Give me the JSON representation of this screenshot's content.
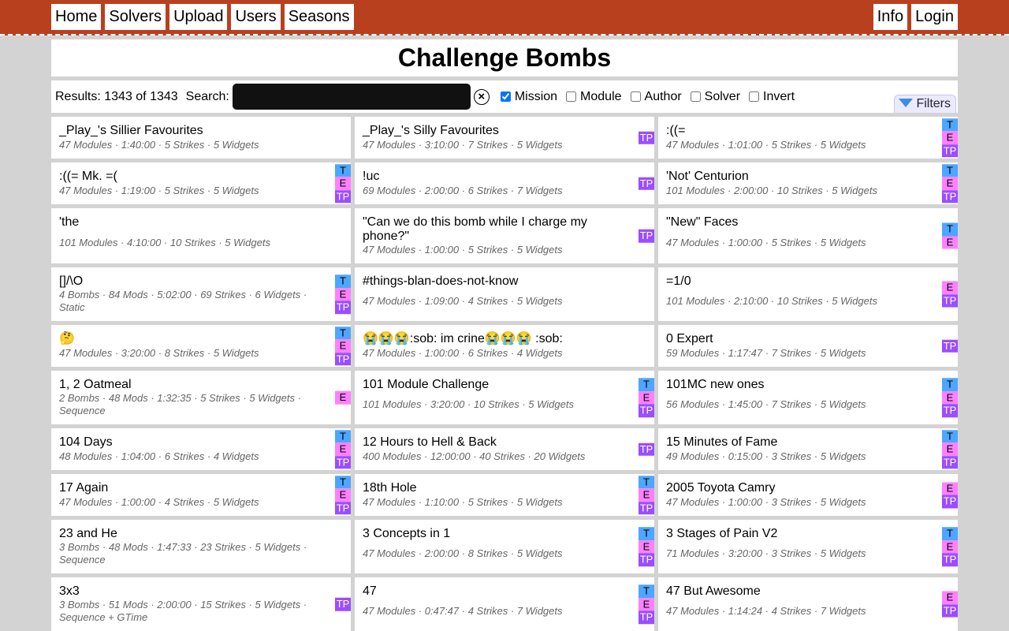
{
  "nav": {
    "left": [
      "Home",
      "Solvers",
      "Upload",
      "Users",
      "Seasons"
    ],
    "right": [
      "Info",
      "Login"
    ]
  },
  "page_title": "Challenge Bombs",
  "toolbar": {
    "results": "Results: 1343 of 1343",
    "search_label": "Search:",
    "search_value": "",
    "clear_icon": "circle-x-icon",
    "checkboxes": [
      {
        "label": "Mission",
        "checked": true
      },
      {
        "label": "Module",
        "checked": false
      },
      {
        "label": "Author",
        "checked": false
      },
      {
        "label": "Solver",
        "checked": false
      },
      {
        "label": "Invert",
        "checked": false
      }
    ],
    "filters_label": "Filters"
  },
  "badge_colors": {
    "T": "#4da6ff",
    "E": "#ff80ff",
    "TP": "#9b4dff"
  },
  "missions": [
    {
      "name": "_Play_'s Sillier Favourites",
      "details": "47 Modules · 1:40:00 · 5 Strikes · 5 Widgets",
      "badges": []
    },
    {
      "name": "_Play_'s Silly Favourites",
      "details": "47 Modules · 3:10:00 · 7 Strikes · 5 Widgets",
      "badges": [
        "TP"
      ]
    },
    {
      "name": ":((=",
      "details": "47 Modules · 1:01:00 · 5 Strikes · 5 Widgets",
      "badges": [
        "T",
        "E",
        "TP"
      ]
    },
    {
      "name": ":((= Mk. =(",
      "details": "47 Modules · 1:19:00 · 5 Strikes · 5 Widgets",
      "badges": [
        "T",
        "E",
        "TP"
      ]
    },
    {
      "name": "!uc",
      "details": "69 Modules · 2:00:00 · 6 Strikes · 7 Widgets",
      "badges": [
        "TP"
      ]
    },
    {
      "name": "'Not' Centurion",
      "details": "101 Modules · 2:00:00 · 10 Strikes · 5 Widgets",
      "badges": [
        "T",
        "E",
        "TP"
      ]
    },
    {
      "name": "'the",
      "details": "101 Modules · 4:10:00 · 10 Strikes · 5 Widgets",
      "badges": []
    },
    {
      "name": "\"Can we do this bomb while I charge my phone?\"",
      "details": "47 Modules · 1:00:00 · 5 Strikes · 5 Widgets",
      "badges": [
        "TP"
      ]
    },
    {
      "name": "\"New\" Faces",
      "details": "47 Modules · 1:00:00 · 5 Strikes · 5 Widgets",
      "badges": [
        "T",
        "E"
      ]
    },
    {
      "name": "[]/\\O",
      "details": "4 Bombs · 84 Mods · 5:02:00 · 69 Strikes · 6 Widgets · Static",
      "badges": [
        "T",
        "E",
        "TP"
      ]
    },
    {
      "name": "#things-blan-does-not-know",
      "details": "47 Modules · 1:09:00 · 4 Strikes · 5 Widgets",
      "badges": []
    },
    {
      "name": "=1/0",
      "details": "101 Modules · 2:10:00 · 10 Strikes · 5 Widgets",
      "badges": [
        "E",
        "TP"
      ]
    },
    {
      "name": "🤔",
      "details": "47 Modules · 3:20:00 · 8 Strikes · 5 Widgets",
      "badges": [
        "T",
        "E",
        "TP"
      ]
    },
    {
      "name": "😭😭😭:sob: im crine😭😭😭 :sob:",
      "details": "47 Modules · 1:00:00 · 6 Strikes · 4 Widgets",
      "badges": []
    },
    {
      "name": "0 Expert",
      "details": "59 Modules · 1:17:47 · 7 Strikes · 5 Widgets",
      "badges": [
        "TP"
      ]
    },
    {
      "name": "1, 2 Oatmeal",
      "details": "2 Bombs · 48 Mods · 1:32:35 · 5 Strikes · 5 Widgets · Sequence",
      "badges": [
        "E"
      ]
    },
    {
      "name": "101 Module Challenge",
      "details": "101 Modules · 3:20:00 · 10 Strikes · 5 Widgets",
      "badges": [
        "T",
        "E",
        "TP"
      ]
    },
    {
      "name": "101MC new ones",
      "details": "56 Modules · 1:45:00 · 7 Strikes · 5 Widgets",
      "badges": [
        "T",
        "E",
        "TP"
      ]
    },
    {
      "name": "104 Days",
      "details": "48 Modules · 1:04:00 · 6 Strikes · 4 Widgets",
      "badges": [
        "T",
        "E",
        "TP"
      ]
    },
    {
      "name": "12 Hours to Hell & Back",
      "details": "400 Modules · 12:00:00 · 40 Strikes · 20 Widgets",
      "badges": [
        "TP"
      ]
    },
    {
      "name": "15 Minutes of Fame",
      "details": "49 Modules · 0:15:00 · 3 Strikes · 5 Widgets",
      "badges": [
        "T",
        "E",
        "TP"
      ]
    },
    {
      "name": "17 Again",
      "details": "47 Modules · 1:00:00 · 4 Strikes · 5 Widgets",
      "badges": [
        "T",
        "E",
        "TP"
      ]
    },
    {
      "name": "18th Hole",
      "details": "47 Modules · 1:10:00 · 5 Strikes · 5 Widgets",
      "badges": [
        "T",
        "E",
        "TP"
      ]
    },
    {
      "name": "2005 Toyota Camry",
      "details": "47 Modules · 1:00:00 · 3 Strikes · 5 Widgets",
      "badges": [
        "E",
        "TP"
      ]
    },
    {
      "name": "23 and He",
      "details": "3 Bombs · 48 Mods · 1:47:33 · 23 Strikes · 5 Widgets · Sequence",
      "badges": []
    },
    {
      "name": "3 Concepts in 1",
      "details": "47 Modules · 2:00:00 · 8 Strikes · 5 Widgets",
      "badges": [
        "T",
        "E",
        "TP"
      ]
    },
    {
      "name": "3 Stages of Pain V2",
      "details": "71 Modules · 3:20:00 · 3 Strikes · 5 Widgets",
      "badges": [
        "T",
        "E",
        "TP"
      ]
    },
    {
      "name": "3x3",
      "details": "3 Bombs · 51 Mods · 2:00:00 · 15 Strikes · 5 Widgets · Sequence + GTime",
      "badges": [
        "TP"
      ]
    },
    {
      "name": "47",
      "details": "47 Modules · 0:47:47 · 4 Strikes · 7 Widgets",
      "badges": [
        "T",
        "E",
        "TP"
      ]
    },
    {
      "name": "47 But Awesome",
      "details": "47 Modules · 1:14:24 · 4 Strikes · 7 Widgets",
      "badges": [
        "E",
        "TP"
      ]
    }
  ]
}
